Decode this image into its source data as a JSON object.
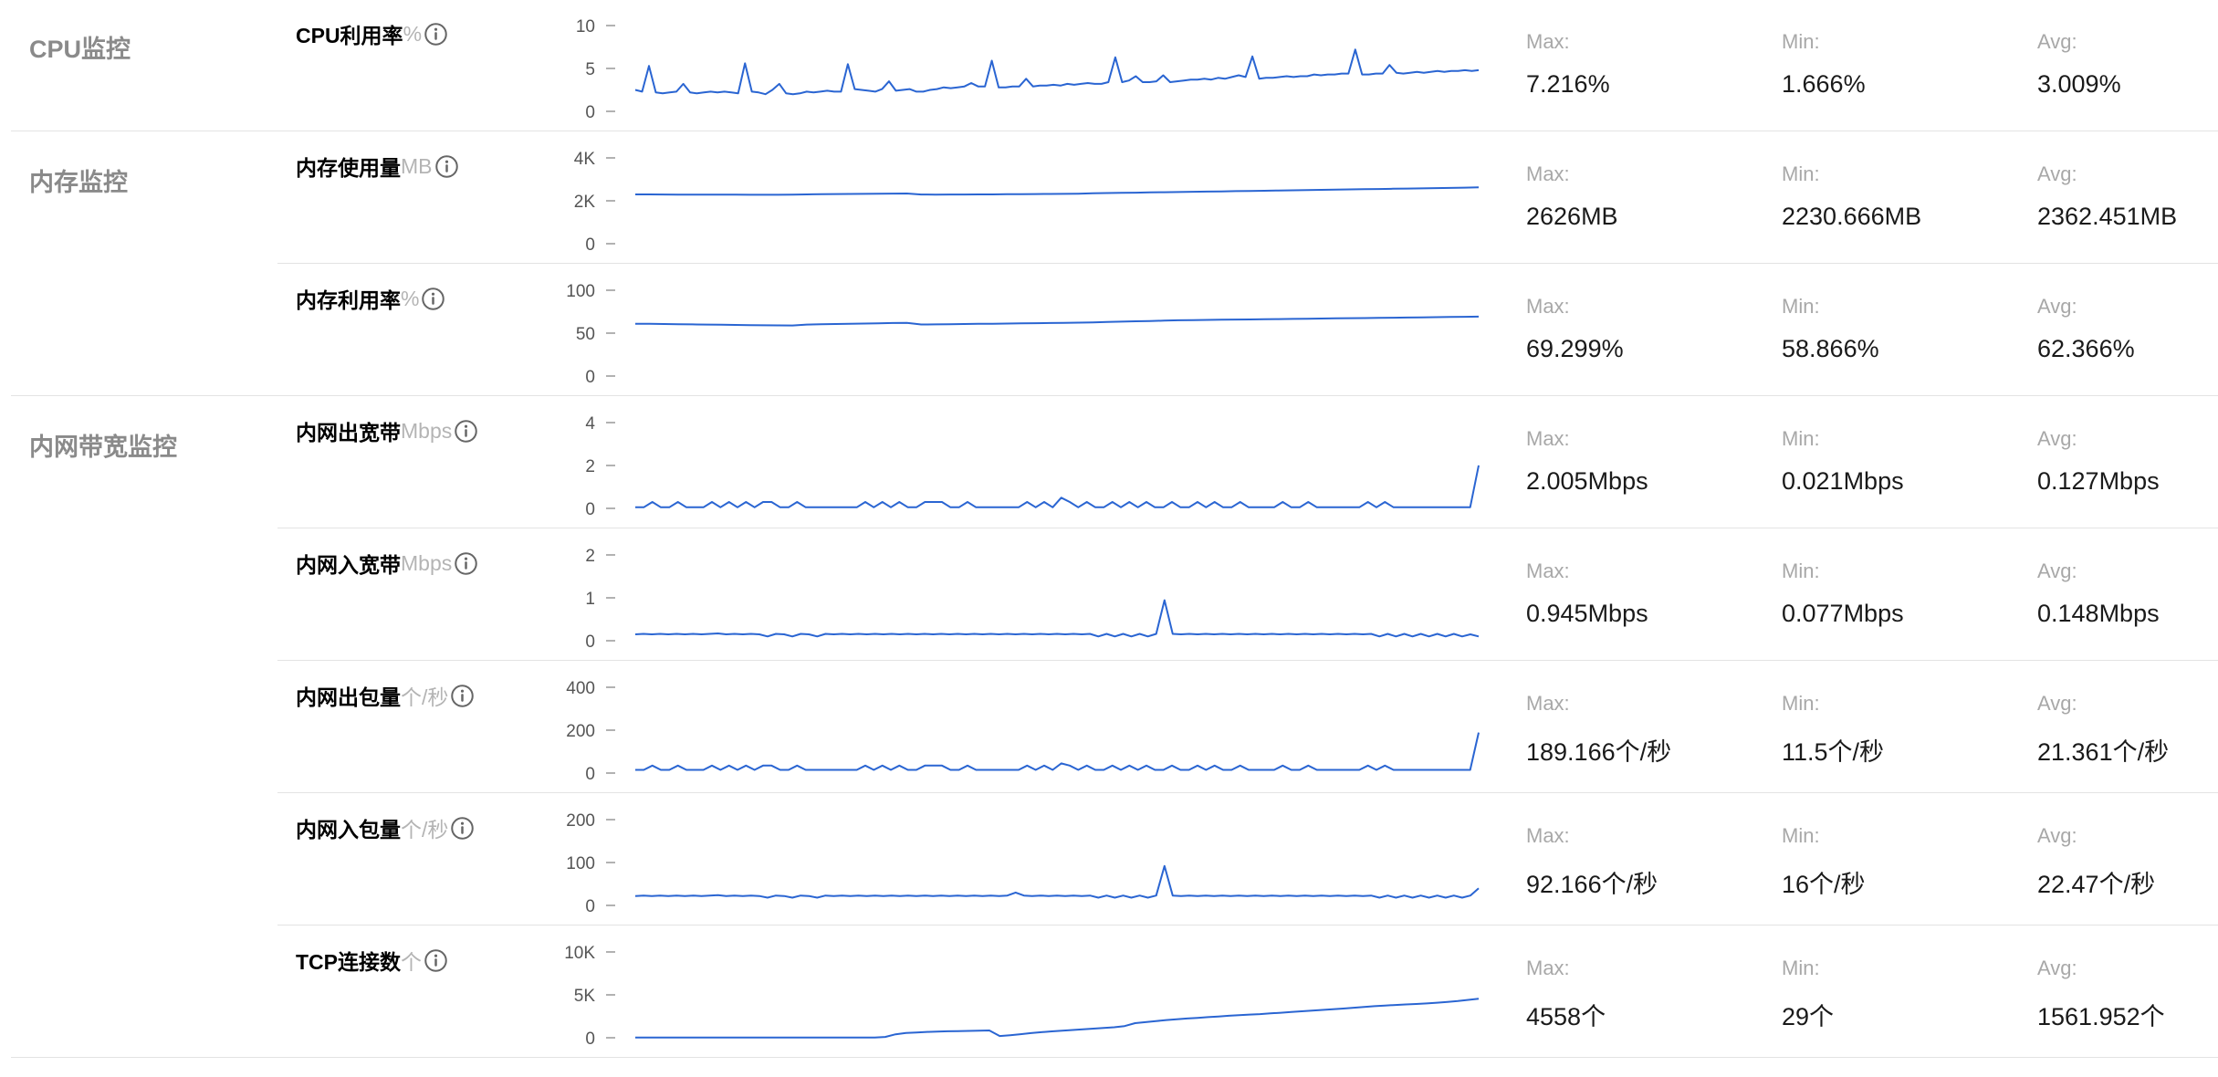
{
  "sections": [
    {
      "title": "CPU监控",
      "rows": [
        0
      ]
    },
    {
      "title": "内存监控",
      "rows": [
        1,
        2
      ]
    },
    {
      "title": "内网带宽监控",
      "rows": [
        3,
        4,
        5,
        6,
        7
      ]
    }
  ],
  "stat_labels": {
    "max": "Max:",
    "min": "Min:",
    "avg": "Avg:"
  },
  "icons": {
    "info": "info-icon"
  },
  "colors": {
    "series": "#2a65d2",
    "section_title": "#8a8a8a",
    "unit": "#b4b4b4"
  },
  "metrics": [
    {
      "label": "CPU利用率",
      "unit": "%",
      "max": "7.216%",
      "min": "1.666%",
      "avg": "3.009%"
    },
    {
      "label": "内存使用量",
      "unit": "MB",
      "max": "2626MB",
      "min": "2230.666MB",
      "avg": "2362.451MB"
    },
    {
      "label": "内存利用率",
      "unit": "%",
      "max": "69.299%",
      "min": "58.866%",
      "avg": "62.366%"
    },
    {
      "label": "内网出宽带",
      "unit": "Mbps",
      "max": "2.005Mbps",
      "min": "0.021Mbps",
      "avg": "0.127Mbps"
    },
    {
      "label": "内网入宽带",
      "unit": "Mbps",
      "max": "0.945Mbps",
      "min": "0.077Mbps",
      "avg": "0.148Mbps"
    },
    {
      "label": "内网出包量",
      "unit": "个/秒",
      "max": "189.166个/秒",
      "min": "11.5个/秒",
      "avg": "21.361个/秒"
    },
    {
      "label": "内网入包量",
      "unit": "个/秒",
      "max": "92.166个/秒",
      "min": "16个/秒",
      "avg": "22.47个/秒"
    },
    {
      "label": "TCP连接数",
      "unit": "个",
      "max": "4558个",
      "min": "29个",
      "avg": "1561.952个"
    }
  ],
  "chart_data": [
    {
      "type": "line",
      "yticks": [
        "10",
        "5",
        "0"
      ],
      "ylim": [
        0,
        10
      ],
      "values": [
        2.5,
        2.3,
        5.3,
        2.2,
        2.1,
        2.2,
        2.3,
        3.2,
        2.2,
        2.1,
        2.2,
        2.3,
        2.2,
        2.3,
        2.2,
        2.1,
        5.6,
        2.3,
        2.2,
        2.0,
        2.5,
        3.2,
        2.1,
        2.0,
        2.1,
        2.3,
        2.2,
        2.3,
        2.4,
        2.3,
        2.3,
        5.5,
        2.6,
        2.5,
        2.4,
        2.3,
        2.6,
        3.5,
        2.4,
        2.5,
        2.6,
        2.3,
        2.3,
        2.5,
        2.6,
        2.8,
        2.7,
        2.8,
        2.9,
        3.3,
        2.9,
        2.9,
        5.9,
        2.8,
        2.8,
        2.9,
        2.9,
        3.8,
        2.9,
        3.0,
        3.0,
        3.1,
        3.0,
        3.2,
        3.1,
        3.2,
        3.3,
        3.2,
        3.2,
        3.4,
        6.3,
        3.4,
        3.6,
        4.1,
        3.4,
        3.4,
        3.5,
        4.2,
        3.4,
        3.5,
        3.6,
        3.7,
        3.7,
        3.8,
        3.7,
        3.9,
        3.8,
        4.0,
        4.2,
        4.0,
        6.4,
        3.8,
        3.9,
        3.9,
        4.0,
        4.1,
        4.0,
        4.1,
        4.1,
        4.3,
        4.2,
        4.3,
        4.3,
        4.4,
        4.4,
        7.2,
        4.3,
        4.3,
        4.4,
        4.4,
        5.4,
        4.5,
        4.4,
        4.5,
        4.6,
        4.5,
        4.6,
        4.7,
        4.6,
        4.7,
        4.7,
        4.8,
        4.7,
        4.8
      ]
    },
    {
      "type": "line",
      "yticks": [
        "4K",
        "2K",
        "0"
      ],
      "ylim": [
        0,
        4000
      ],
      "values": [
        2300,
        2300,
        2295,
        2290,
        2290,
        2288,
        2285,
        2283,
        2282,
        2280,
        2282,
        2285,
        2300,
        2310,
        2315,
        2320,
        2325,
        2330,
        2335,
        2340,
        2295,
        2290,
        2292,
        2295,
        2298,
        2300,
        2305,
        2310,
        2315,
        2320,
        2325,
        2330,
        2350,
        2360,
        2370,
        2380,
        2390,
        2400,
        2410,
        2420,
        2430,
        2440,
        2450,
        2460,
        2470,
        2480,
        2490,
        2500,
        2510,
        2520,
        2530,
        2540,
        2550,
        2560,
        2570,
        2580,
        2590,
        2600,
        2612,
        2626
      ]
    },
    {
      "type": "line",
      "yticks": [
        "100",
        "50",
        "0"
      ],
      "ylim": [
        0,
        100
      ],
      "values": [
        61.0,
        60.8,
        60.6,
        60.4,
        60.2,
        60.0,
        59.8,
        59.6,
        59.4,
        59.2,
        59.0,
        58.9,
        60.0,
        60.3,
        60.6,
        60.9,
        61.2,
        61.5,
        61.8,
        62.0,
        60.1,
        60.2,
        60.4,
        60.6,
        60.8,
        61.0,
        61.2,
        61.4,
        61.6,
        61.8,
        62.0,
        62.2,
        62.6,
        63.0,
        63.4,
        63.8,
        64.2,
        64.6,
        65.0,
        65.2,
        65.4,
        65.6,
        65.8,
        66.0,
        66.2,
        66.4,
        66.6,
        66.8,
        67.0,
        67.2,
        67.4,
        67.6,
        67.8,
        68.0,
        68.2,
        68.4,
        68.6,
        68.8,
        69.0,
        69.3
      ]
    },
    {
      "type": "line",
      "yticks": [
        "4",
        "2",
        "0"
      ],
      "ylim": [
        0,
        4
      ],
      "values": [
        0.05,
        0.05,
        0.3,
        0.05,
        0.05,
        0.3,
        0.05,
        0.05,
        0.05,
        0.3,
        0.05,
        0.3,
        0.05,
        0.3,
        0.05,
        0.3,
        0.3,
        0.05,
        0.05,
        0.3,
        0.05,
        0.05,
        0.05,
        0.05,
        0.05,
        0.05,
        0.05,
        0.3,
        0.05,
        0.3,
        0.05,
        0.3,
        0.05,
        0.05,
        0.3,
        0.3,
        0.3,
        0.05,
        0.05,
        0.3,
        0.05,
        0.05,
        0.05,
        0.05,
        0.05,
        0.05,
        0.3,
        0.05,
        0.3,
        0.05,
        0.5,
        0.3,
        0.05,
        0.3,
        0.05,
        0.05,
        0.3,
        0.05,
        0.3,
        0.05,
        0.3,
        0.05,
        0.05,
        0.3,
        0.05,
        0.05,
        0.3,
        0.05,
        0.3,
        0.05,
        0.05,
        0.3,
        0.05,
        0.05,
        0.05,
        0.05,
        0.3,
        0.05,
        0.05,
        0.3,
        0.05,
        0.05,
        0.05,
        0.05,
        0.05,
        0.05,
        0.3,
        0.05,
        0.3,
        0.05,
        0.05,
        0.05,
        0.05,
        0.05,
        0.05,
        0.05,
        0.05,
        0.05,
        0.05,
        2.005
      ]
    },
    {
      "type": "line",
      "yticks": [
        "2",
        "1",
        "0"
      ],
      "ylim": [
        0,
        2
      ],
      "values": [
        0.15,
        0.16,
        0.15,
        0.16,
        0.15,
        0.16,
        0.15,
        0.16,
        0.15,
        0.16,
        0.17,
        0.15,
        0.16,
        0.15,
        0.16,
        0.15,
        0.1,
        0.16,
        0.15,
        0.1,
        0.16,
        0.15,
        0.1,
        0.16,
        0.15,
        0.16,
        0.15,
        0.16,
        0.15,
        0.16,
        0.15,
        0.16,
        0.15,
        0.16,
        0.15,
        0.16,
        0.15,
        0.16,
        0.15,
        0.16,
        0.15,
        0.16,
        0.15,
        0.16,
        0.15,
        0.16,
        0.15,
        0.16,
        0.15,
        0.16,
        0.15,
        0.16,
        0.15,
        0.16,
        0.15,
        0.16,
        0.1,
        0.16,
        0.1,
        0.16,
        0.1,
        0.16,
        0.1,
        0.16,
        0.945,
        0.16,
        0.15,
        0.16,
        0.15,
        0.16,
        0.15,
        0.16,
        0.15,
        0.16,
        0.15,
        0.16,
        0.15,
        0.16,
        0.15,
        0.16,
        0.15,
        0.16,
        0.15,
        0.16,
        0.15,
        0.16,
        0.15,
        0.16,
        0.15,
        0.16,
        0.1,
        0.16,
        0.1,
        0.16,
        0.1,
        0.16,
        0.1,
        0.16,
        0.1,
        0.16,
        0.1,
        0.15,
        0.1
      ]
    },
    {
      "type": "line",
      "yticks": [
        "400",
        "200",
        "0"
      ],
      "ylim": [
        0,
        400
      ],
      "values": [
        15,
        15,
        35,
        15,
        15,
        35,
        15,
        15,
        15,
        35,
        15,
        35,
        15,
        35,
        15,
        35,
        35,
        15,
        15,
        35,
        15,
        15,
        15,
        15,
        15,
        15,
        15,
        35,
        15,
        35,
        15,
        35,
        15,
        15,
        35,
        35,
        35,
        15,
        15,
        35,
        15,
        15,
        15,
        15,
        15,
        15,
        35,
        15,
        35,
        15,
        45,
        35,
        15,
        35,
        15,
        15,
        35,
        15,
        35,
        15,
        35,
        15,
        15,
        35,
        15,
        15,
        35,
        15,
        35,
        15,
        15,
        35,
        15,
        15,
        15,
        15,
        35,
        15,
        15,
        35,
        15,
        15,
        15,
        15,
        15,
        15,
        35,
        15,
        35,
        15,
        15,
        15,
        15,
        15,
        15,
        15,
        15,
        15,
        15,
        189
      ]
    },
    {
      "type": "line",
      "yticks": [
        "200",
        "100",
        "0"
      ],
      "ylim": [
        0,
        200
      ],
      "values": [
        22,
        23,
        22,
        23,
        22,
        23,
        22,
        23,
        22,
        23,
        24,
        22,
        23,
        22,
        23,
        22,
        18,
        23,
        22,
        18,
        23,
        22,
        18,
        23,
        22,
        23,
        22,
        23,
        22,
        23,
        22,
        23,
        22,
        23,
        22,
        23,
        22,
        23,
        22,
        23,
        22,
        23,
        22,
        23,
        22,
        23,
        30,
        23,
        22,
        23,
        22,
        23,
        22,
        23,
        22,
        23,
        18,
        23,
        18,
        23,
        18,
        23,
        18,
        23,
        92,
        23,
        22,
        23,
        22,
        23,
        22,
        23,
        22,
        23,
        22,
        23,
        22,
        23,
        22,
        23,
        22,
        23,
        22,
        23,
        22,
        23,
        22,
        23,
        22,
        23,
        18,
        23,
        18,
        23,
        18,
        23,
        18,
        23,
        18,
        23,
        18,
        23,
        40
      ]
    },
    {
      "type": "line",
      "yticks": [
        "10K",
        "5K",
        "0"
      ],
      "ylim": [
        0,
        10000
      ],
      "values": [
        29,
        29,
        29,
        29,
        29,
        29,
        29,
        29,
        29,
        29,
        29,
        29,
        29,
        29,
        29,
        29,
        29,
        29,
        29,
        29,
        29,
        29,
        29,
        29,
        100,
        400,
        550,
        620,
        680,
        720,
        760,
        780,
        800,
        820,
        850,
        200,
        300,
        420,
        540,
        650,
        740,
        820,
        900,
        980,
        1060,
        1140,
        1220,
        1360,
        1700,
        1820,
        1940,
        2060,
        2160,
        2240,
        2320,
        2400,
        2480,
        2560,
        2640,
        2700,
        2760,
        2840,
        2920,
        3000,
        3080,
        3160,
        3240,
        3320,
        3400,
        3500,
        3600,
        3680,
        3760,
        3820,
        3880,
        3940,
        4000,
        4080,
        4180,
        4280,
        4420,
        4558
      ]
    }
  ]
}
